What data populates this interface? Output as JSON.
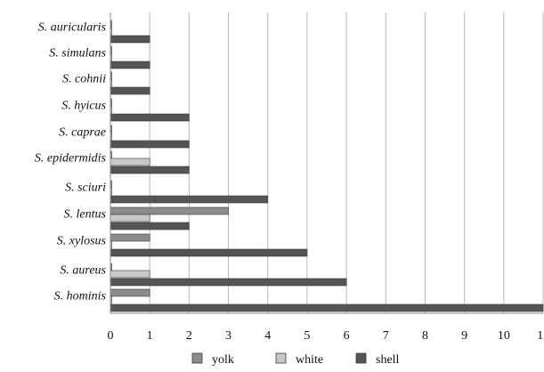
{
  "chart_data": {
    "type": "bar",
    "orientation": "horizontal",
    "title": "",
    "xlabel": "",
    "ylabel": "",
    "xlim": [
      0,
      11
    ],
    "x_ticks": [
      "0",
      "1",
      "2",
      "3",
      "4",
      "5",
      "6",
      "7",
      "8",
      "9",
      "10",
      "11"
    ],
    "grid": "vertical",
    "legend_position": "bottom",
    "categories": [
      "S. auricularis",
      "S. simulans",
      "S. cohnii",
      "S. hyicus",
      "S. caprae",
      "S. epidermidis",
      "S. sciuri",
      "S. lentus",
      "S. xylosus",
      "S. aureus",
      "S. hominis"
    ],
    "series": [
      {
        "name": "yolk",
        "color": "#8c8c8c",
        "values": [
          0,
          0,
          0,
          0,
          0,
          0,
          0,
          3,
          1,
          0,
          1
        ]
      },
      {
        "name": "white",
        "color": "#c8c8c8",
        "values": [
          0,
          0,
          0,
          0,
          0,
          1,
          0,
          1,
          0,
          1,
          0
        ]
      },
      {
        "name": "shell",
        "color": "#555555",
        "values": [
          1,
          1,
          1,
          2,
          2,
          2,
          4,
          2,
          5,
          6,
          11
        ]
      }
    ]
  }
}
